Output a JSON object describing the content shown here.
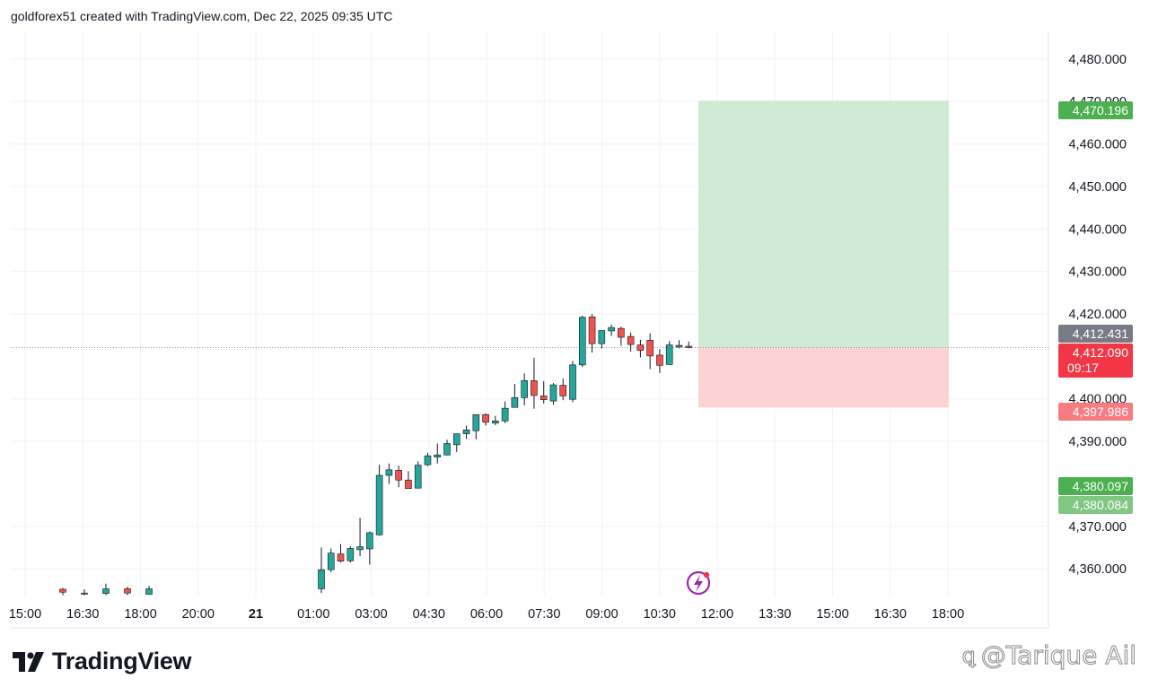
{
  "header": {
    "text": "goldforex51 created with TradingView.com, Dec 22, 2025 09:35 UTC"
  },
  "branding": {
    "logo_text": "TradingView",
    "watermark": "@Tarique Ail",
    "watermark_icon": "ꝗ"
  },
  "colors": {
    "up": "#26a69a",
    "down": "#ef5350",
    "profit_zone": "#d0ebd4",
    "loss_zone": "#fdd2d2",
    "label_green": "#4caf50",
    "label_light_green": "#81c784",
    "label_gray": "#787b86",
    "label_red": "#f23645",
    "label_light_red": "#f77c80",
    "grid": "#f0f3fa",
    "axis_text": "#131722"
  },
  "chart_data": {
    "type": "candlestick",
    "y_axis": {
      "min": 4353.5,
      "max": 4486.5,
      "ticks": [
        4480,
        4470,
        4460,
        4450,
        4440,
        4430,
        4420,
        4400,
        4390,
        4370,
        4360
      ],
      "tick_labels": [
        "4,480.000",
        "4,470.000",
        "4,460.000",
        "4,450.000",
        "4,440.000",
        "4,430.000",
        "4,420.000",
        "4,400.000",
        "4,390.000",
        "4,370.000",
        "4,360.000"
      ]
    },
    "x_axis": {
      "labels": [
        "15:00",
        "16:30",
        "18:00",
        "20:00",
        "21",
        "01:00",
        "03:00",
        "04:30",
        "06:00",
        "07:30",
        "09:00",
        "10:30",
        "12:00",
        "13:30",
        "15:00",
        "16:30",
        "18:00"
      ]
    },
    "candles": [
      {
        "o": 4355.2,
        "h": 4355.5,
        "l": 4353.8,
        "c": 4354.5
      },
      {
        "o": 4354.3,
        "h": 4355.2,
        "l": 4353.8,
        "c": 4354.2
      },
      {
        "o": 4354.2,
        "h": 4356.5,
        "l": 4353.8,
        "c": 4355.3
      },
      {
        "o": 4355.3,
        "h": 4355.8,
        "l": 4353.8,
        "c": 4354.3
      },
      {
        "o": 4354.0,
        "h": 4356.0,
        "l": 4353.9,
        "c": 4355.3
      },
      {
        "o": 4355.3,
        "h": 4365.0,
        "l": 4354.3,
        "c": 4359.8
      },
      {
        "o": 4359.8,
        "h": 4364.8,
        "l": 4359.2,
        "c": 4363.7
      },
      {
        "o": 4363.5,
        "h": 4365.8,
        "l": 4361.5,
        "c": 4361.8
      },
      {
        "o": 4361.9,
        "h": 4365.3,
        "l": 4361.5,
        "c": 4364.8
      },
      {
        "o": 4364.5,
        "h": 4372.0,
        "l": 4363.0,
        "c": 4365.2
      },
      {
        "o": 4364.7,
        "h": 4368.8,
        "l": 4361.0,
        "c": 4368.5
      },
      {
        "o": 4368.0,
        "h": 4384.5,
        "l": 4367.8,
        "c": 4382.0
      },
      {
        "o": 4382.0,
        "h": 4384.8,
        "l": 4380.0,
        "c": 4383.3
      },
      {
        "o": 4383.2,
        "h": 4384.3,
        "l": 4379.2,
        "c": 4380.9
      },
      {
        "o": 4380.9,
        "h": 4383.0,
        "l": 4378.9,
        "c": 4378.9
      },
      {
        "o": 4379.0,
        "h": 4385.3,
        "l": 4378.9,
        "c": 4384.4
      },
      {
        "o": 4384.5,
        "h": 4387.3,
        "l": 4384.2,
        "c": 4386.6
      },
      {
        "o": 4386.3,
        "h": 4389.5,
        "l": 4384.8,
        "c": 4386.8
      },
      {
        "o": 4386.8,
        "h": 4390.4,
        "l": 4386.7,
        "c": 4389.5
      },
      {
        "o": 4389.2,
        "h": 4391.0,
        "l": 4387.5,
        "c": 4391.8
      },
      {
        "o": 4391.8,
        "h": 4393.7,
        "l": 4390.6,
        "c": 4392.7
      },
      {
        "o": 4392.5,
        "h": 4396.3,
        "l": 4390.5,
        "c": 4396.3
      },
      {
        "o": 4396.3,
        "h": 4396.6,
        "l": 4393.7,
        "c": 4394.5
      },
      {
        "o": 4394.3,
        "h": 4396.0,
        "l": 4393.8,
        "c": 4394.8
      },
      {
        "o": 4394.8,
        "h": 4399.4,
        "l": 4394.3,
        "c": 4397.8
      },
      {
        "o": 4398.0,
        "h": 4403.5,
        "l": 4398.0,
        "c": 4400.3
      },
      {
        "o": 4400.3,
        "h": 4406.0,
        "l": 4398.5,
        "c": 4404.3
      },
      {
        "o": 4404.3,
        "h": 4409.7,
        "l": 4397.7,
        "c": 4400.8
      },
      {
        "o": 4400.7,
        "h": 4404.2,
        "l": 4398.9,
        "c": 4399.8
      },
      {
        "o": 4399.5,
        "h": 4403.7,
        "l": 4398.6,
        "c": 4403.3
      },
      {
        "o": 4403.2,
        "h": 4404.8,
        "l": 4399.7,
        "c": 4400.7
      },
      {
        "o": 4399.9,
        "h": 4408.9,
        "l": 4399.2,
        "c": 4408.0
      },
      {
        "o": 4408.0,
        "h": 4419.6,
        "l": 4407.5,
        "c": 4419.2
      },
      {
        "o": 4419.3,
        "h": 4420.0,
        "l": 4410.9,
        "c": 4413.0
      },
      {
        "o": 4413.0,
        "h": 4416.0,
        "l": 4411.9,
        "c": 4416.1
      },
      {
        "o": 4416.0,
        "h": 4417.5,
        "l": 4414.8,
        "c": 4416.8
      },
      {
        "o": 4416.6,
        "h": 4417.0,
        "l": 4412.5,
        "c": 4414.5
      },
      {
        "o": 4414.7,
        "h": 4415.6,
        "l": 4411.1,
        "c": 4412.8
      },
      {
        "o": 4412.7,
        "h": 4413.9,
        "l": 4409.8,
        "c": 4411.4
      },
      {
        "o": 4413.8,
        "h": 4415.4,
        "l": 4407.0,
        "c": 4410.1
      },
      {
        "o": 4410.3,
        "h": 4411.7,
        "l": 4406.1,
        "c": 4407.9
      },
      {
        "o": 4408.1,
        "h": 4413.6,
        "l": 4408.0,
        "c": 4412.7
      },
      {
        "o": 4412.2,
        "h": 4413.8,
        "l": 4411.9,
        "c": 4412.6
      },
      {
        "o": 4412.4,
        "h": 4413.5,
        "l": 4411.9,
        "c": 4412.1
      }
    ],
    "position": {
      "entry": 4412.09,
      "target": 4470.196,
      "stop": 4397.986
    },
    "price_labels": [
      {
        "text": "4,470.196",
        "value": 4470.196,
        "role": "target"
      },
      {
        "text": "4,412.431",
        "value": 4412.431,
        "role": "last"
      },
      {
        "text": "4,412.090",
        "value": 4412.09,
        "role": "current",
        "sub": "09:17"
      },
      {
        "text": "4,397.986",
        "value": 4397.986,
        "role": "stop"
      },
      {
        "text": "4,380.097",
        "value": 4380.097,
        "role": "green"
      },
      {
        "text": "4,380.084",
        "value": 4380.084,
        "role": "light-green"
      }
    ]
  }
}
